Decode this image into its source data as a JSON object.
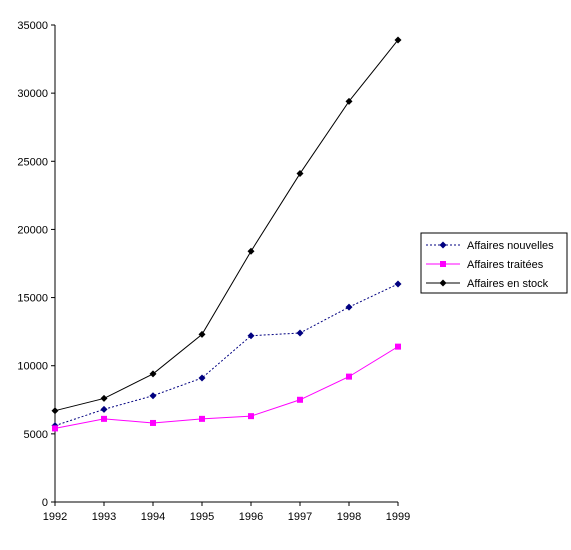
{
  "chart_data": {
    "type": "line",
    "title": "",
    "xlabel": "",
    "ylabel": "",
    "x": [
      1992,
      1993,
      1994,
      1995,
      1996,
      1997,
      1998,
      1999
    ],
    "ylim": [
      0,
      35000
    ],
    "yticks": [
      0,
      5000,
      10000,
      15000,
      20000,
      25000,
      30000,
      35000
    ],
    "grid": false,
    "legend_position": "right",
    "series": [
      {
        "name": "Affaires nouvelles",
        "color": "#000080",
        "line_style": "dotted",
        "marker": "diamond",
        "values": [
          5600,
          6800,
          7800,
          9100,
          12200,
          12400,
          14300,
          16000
        ]
      },
      {
        "name": "Affaires traitées",
        "color": "#ff00ff",
        "line_style": "solid",
        "marker": "square",
        "values": [
          5400,
          6100,
          5800,
          6100,
          6300,
          7500,
          9200,
          11400
        ]
      },
      {
        "name": "Affaires en stock",
        "color": "#000000",
        "line_style": "solid",
        "marker": "diamond",
        "values": [
          6700,
          7600,
          9400,
          12300,
          18400,
          24100,
          29400,
          33900
        ]
      }
    ]
  }
}
